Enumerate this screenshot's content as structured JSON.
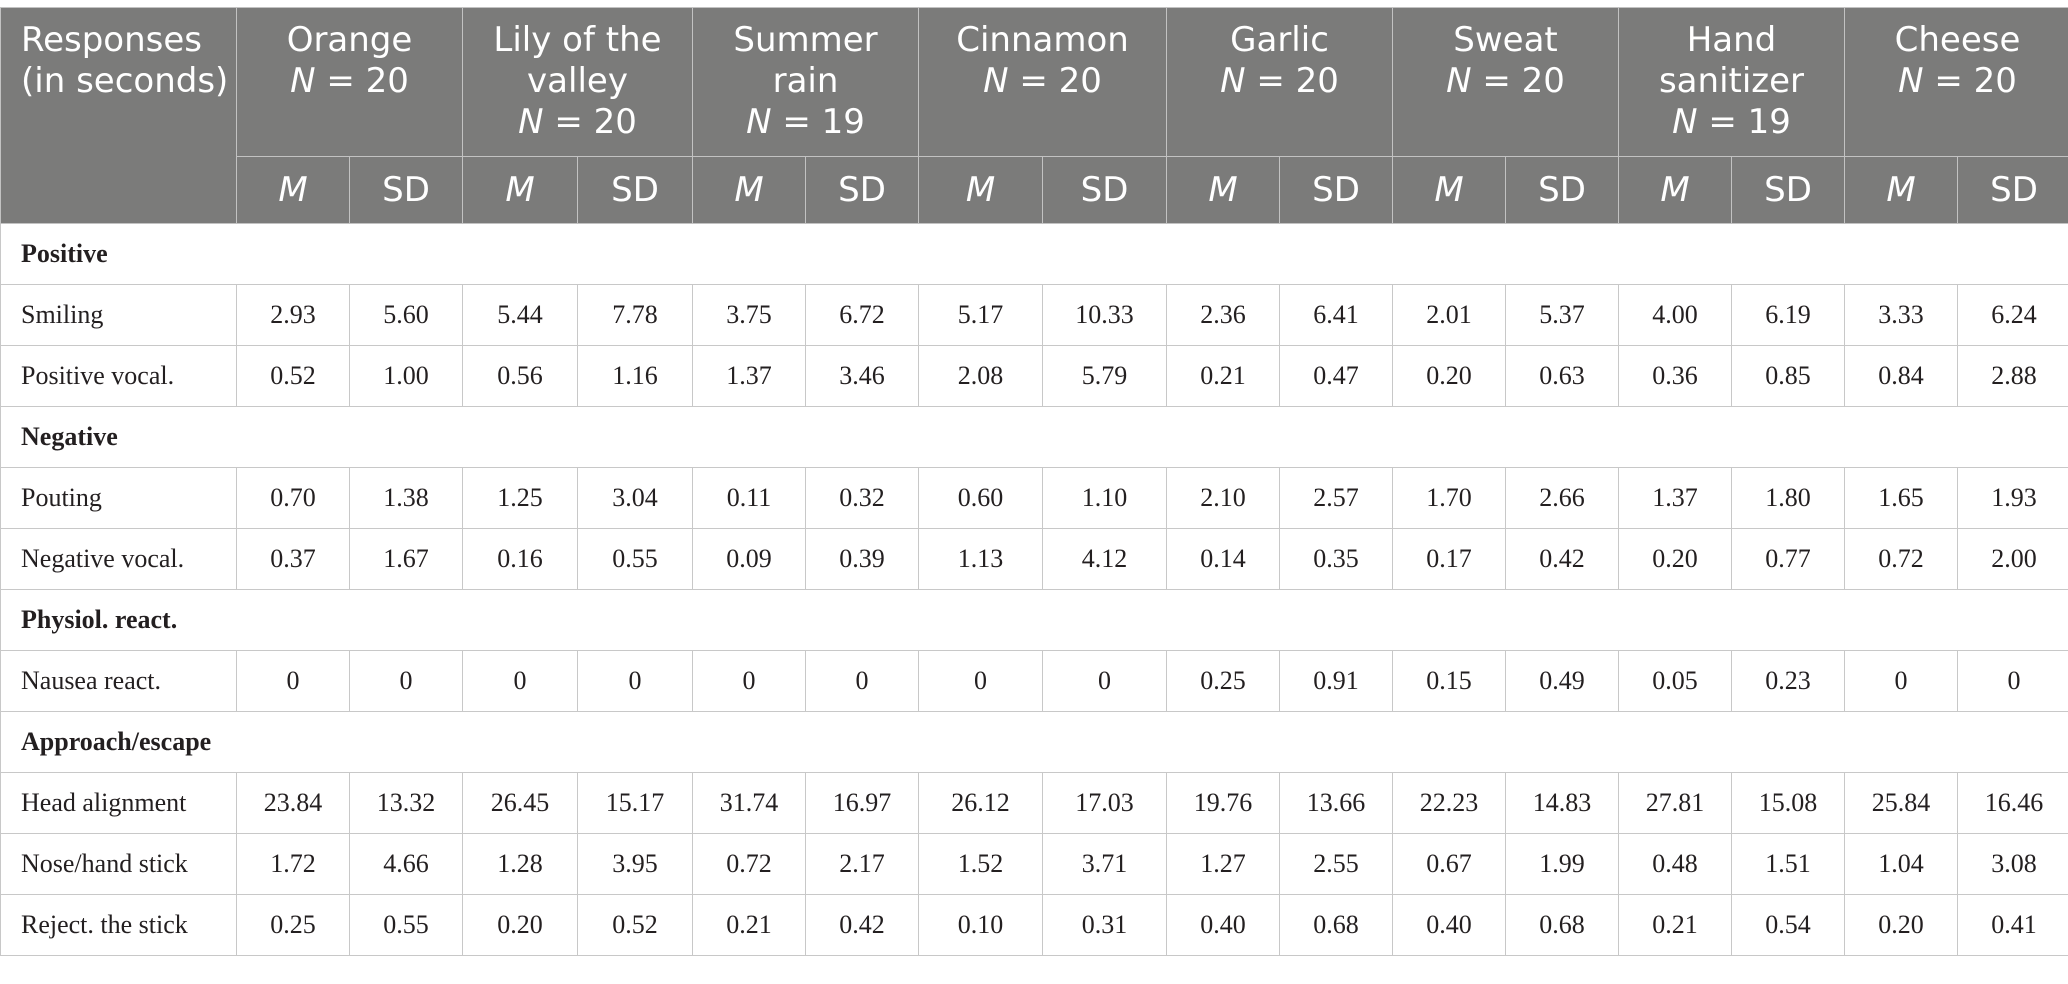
{
  "table": {
    "response_header": "Responses (in seconds)",
    "n_prefix": "N",
    "stat_m": "M",
    "stat_sd": "SD",
    "columns": [
      {
        "name": "Orange",
        "n": "= 20"
      },
      {
        "name": "Lily of the valley",
        "n": "= 20"
      },
      {
        "name": "Summer rain",
        "n": "= 19"
      },
      {
        "name": "Cinnamon",
        "n": "= 20"
      },
      {
        "name": "Garlic",
        "n": "= 20"
      },
      {
        "name": "Sweat",
        "n": "= 20"
      },
      {
        "name": "Hand sanitizer",
        "n": "= 19"
      },
      {
        "name": "Cheese",
        "n": "= 20"
      }
    ],
    "sections": [
      {
        "title": "Positive",
        "rows": [
          {
            "label": "Smiling",
            "values": [
              "2.93",
              "5.60",
              "5.44",
              "7.78",
              "3.75",
              "6.72",
              "5.17",
              "10.33",
              "2.36",
              "6.41",
              "2.01",
              "5.37",
              "4.00",
              "6.19",
              "3.33",
              "6.24"
            ]
          },
          {
            "label": "Positive vocal.",
            "values": [
              "0.52",
              "1.00",
              "0.56",
              "1.16",
              "1.37",
              "3.46",
              "2.08",
              "5.79",
              "0.21",
              "0.47",
              "0.20",
              "0.63",
              "0.36",
              "0.85",
              "0.84",
              "2.88"
            ]
          }
        ]
      },
      {
        "title": "Negative",
        "rows": [
          {
            "label": "Pouting",
            "values": [
              "0.70",
              "1.38",
              "1.25",
              "3.04",
              "0.11",
              "0.32",
              "0.60",
              "1.10",
              "2.10",
              "2.57",
              "1.70",
              "2.66",
              "1.37",
              "1.80",
              "1.65",
              "1.93"
            ]
          },
          {
            "label": "Negative vocal.",
            "values": [
              "0.37",
              "1.67",
              "0.16",
              "0.55",
              "0.09",
              "0.39",
              "1.13",
              "4.12",
              "0.14",
              "0.35",
              "0.17",
              "0.42",
              "0.20",
              "0.77",
              "0.72",
              "2.00"
            ]
          }
        ]
      },
      {
        "title": "Physiol. react.",
        "rows": [
          {
            "label": "Nausea react.",
            "values": [
              "0",
              "0",
              "0",
              "0",
              "0",
              "0",
              "0",
              "0",
              "0.25",
              "0.91",
              "0.15",
              "0.49",
              "0.05",
              "0.23",
              "0",
              "0"
            ]
          }
        ]
      },
      {
        "title": "Approach/escape",
        "rows": [
          {
            "label": "Head alignment",
            "values": [
              "23.84",
              "13.32",
              "26.45",
              "15.17",
              "31.74",
              "16.97",
              "26.12",
              "17.03",
              "19.76",
              "13.66",
              "22.23",
              "14.83",
              "27.81",
              "15.08",
              "25.84",
              "16.46"
            ]
          },
          {
            "label": "Nose/hand stick",
            "values": [
              "1.72",
              "4.66",
              "1.28",
              "3.95",
              "0.72",
              "2.17",
              "1.52",
              "3.71",
              "1.27",
              "2.55",
              "0.67",
              "1.99",
              "0.48",
              "1.51",
              "1.04",
              "3.08"
            ]
          },
          {
            "label": "Reject. the stick",
            "values": [
              "0.25",
              "0.55",
              "0.20",
              "0.52",
              "0.21",
              "0.42",
              "0.10",
              "0.31",
              "0.40",
              "0.68",
              "0.40",
              "0.68",
              "0.21",
              "0.54",
              "0.20",
              "0.41"
            ]
          }
        ]
      }
    ]
  }
}
